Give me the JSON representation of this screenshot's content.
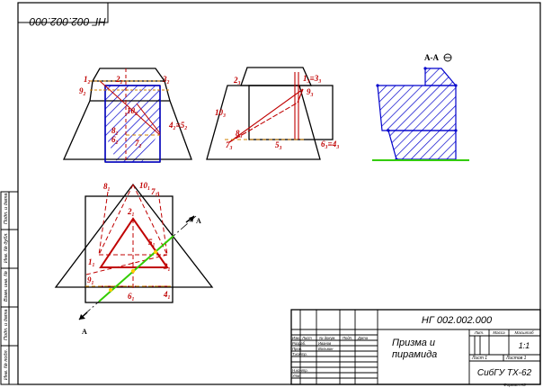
{
  "doc_code_mirrored": "НГ 002.002.000",
  "section_label": "А-А",
  "cut_letter": "А",
  "view1_labels": {
    "p1": "1₂",
    "p2": "2₂",
    "p3": "3₂",
    "p9": "9₂",
    "p10": "10₂",
    "p8": "8₂",
    "p6": "6₂",
    "p7": "7₂",
    "p4": "4₂≡5₂"
  },
  "view2_labels": {
    "p2": "2₃",
    "p13": "1₃≡3₃",
    "p9": "9₃",
    "p10": "10₃",
    "p8": "8₃",
    "p7": "7₃",
    "p5": "5₃",
    "p6": "6₃≡4₃"
  },
  "plan_labels": {
    "p8": "8₁",
    "p10": "10₁",
    "p7": "7₁",
    "p2": "2₁",
    "p5": "5₁",
    "p1": "1₁",
    "p3": "3₁",
    "p9": "9₁",
    "p6": "6₁",
    "p4": "4₁"
  },
  "side_stamp": [
    "Подп. и дата",
    "Инв. № дубл.",
    "Взам. инв. №",
    "Подп. и дата",
    "Инв. № подл."
  ],
  "title_block": {
    "designation": "НГ 002.002.000",
    "name_line1": "Призма и",
    "name_line2": "пирамида",
    "org": "СибГУ ТХ-62",
    "lit_hdr": "Лит.",
    "mass_hdr": "Масса",
    "scale_hdr": "Масштаб",
    "scale": "1:1",
    "sheet": "Лист 1",
    "sheets": "Листов 1",
    "format": "Формат А3",
    "row_headers": [
      "Изм.",
      "Лист",
      "№ докум.",
      "Подп.",
      "Дата"
    ],
    "roles": [
      "Разраб.",
      "Пров.",
      "Т.контр.",
      "Н.контр.",
      "Утв."
    ],
    "developer": "Иванов",
    "checker": "Вольвин"
  },
  "colors": {
    "hatch": "#0000cc",
    "construction": "#c00000",
    "section_axis": "#33cc00",
    "frame": "#000000"
  }
}
